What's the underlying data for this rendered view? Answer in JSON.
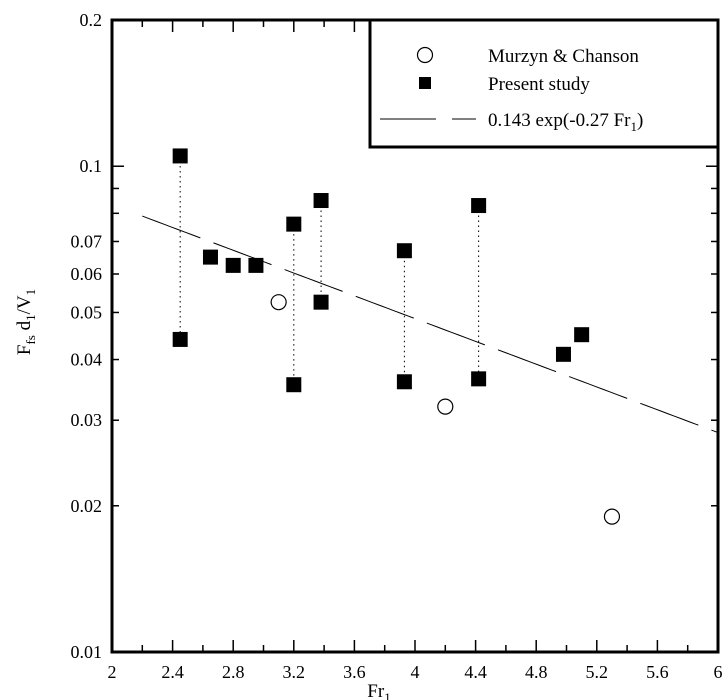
{
  "chart_data": {
    "type": "scatter",
    "xlim": [
      2,
      6
    ],
    "ylim": [
      0.01,
      0.2
    ],
    "y_scale": "log",
    "x_ticks": [
      "2",
      "2.4",
      "2.8",
      "3.2",
      "3.6",
      "4",
      "4.4",
      "4.8",
      "5.2",
      "5.6",
      "6"
    ],
    "y_ticks": [
      "0.01",
      "0.02",
      "0.03",
      "0.04",
      "0.05",
      "0.06",
      "0.07",
      "0.1",
      "0.2"
    ],
    "xlabel": {
      "main": "Fr",
      "sub": "1"
    },
    "ylabel": {
      "p1": "F",
      "s1": "fs",
      "p2": " d",
      "s2": "1",
      "p3": "/V",
      "s3": "1"
    },
    "legend_position": "top-right",
    "legend": {
      "murzyn": "Murzyn & Chanson",
      "present": "Present study",
      "fit": {
        "pre": "0.143 exp(-0.27 Fr",
        "sub": "1",
        "post": ")"
      }
    },
    "series": [
      {
        "name": "Murzyn & Chanson",
        "marker": "open-circle",
        "points": [
          [
            3.1,
            0.0525
          ],
          [
            4.2,
            0.032
          ],
          [
            5.3,
            0.019
          ]
        ]
      },
      {
        "name": "Present study",
        "marker": "filled-square",
        "points": [
          [
            2.45,
            0.105
          ],
          [
            2.45,
            0.044
          ],
          [
            2.65,
            0.065
          ],
          [
            2.8,
            0.0625
          ],
          [
            2.95,
            0.0625
          ],
          [
            3.2,
            0.076
          ],
          [
            3.2,
            0.0355
          ],
          [
            3.38,
            0.085
          ],
          [
            3.38,
            0.0525
          ],
          [
            3.93,
            0.067
          ],
          [
            3.93,
            0.036
          ],
          [
            4.42,
            0.083
          ],
          [
            4.42,
            0.0365
          ],
          [
            4.98,
            0.041
          ],
          [
            5.1,
            0.045
          ]
        ]
      }
    ],
    "ranges": [
      {
        "x": 2.45,
        "low": 0.044,
        "high": 0.105
      },
      {
        "x": 3.2,
        "low": 0.0355,
        "high": 0.076
      },
      {
        "x": 3.38,
        "low": 0.0525,
        "high": 0.085
      },
      {
        "x": 3.93,
        "low": 0.036,
        "high": 0.067
      },
      {
        "x": 4.42,
        "low": 0.0365,
        "high": 0.083
      }
    ],
    "fit": {
      "a": 0.143,
      "b": -0.27,
      "x_from": 2.2,
      "x_to": 6
    }
  }
}
